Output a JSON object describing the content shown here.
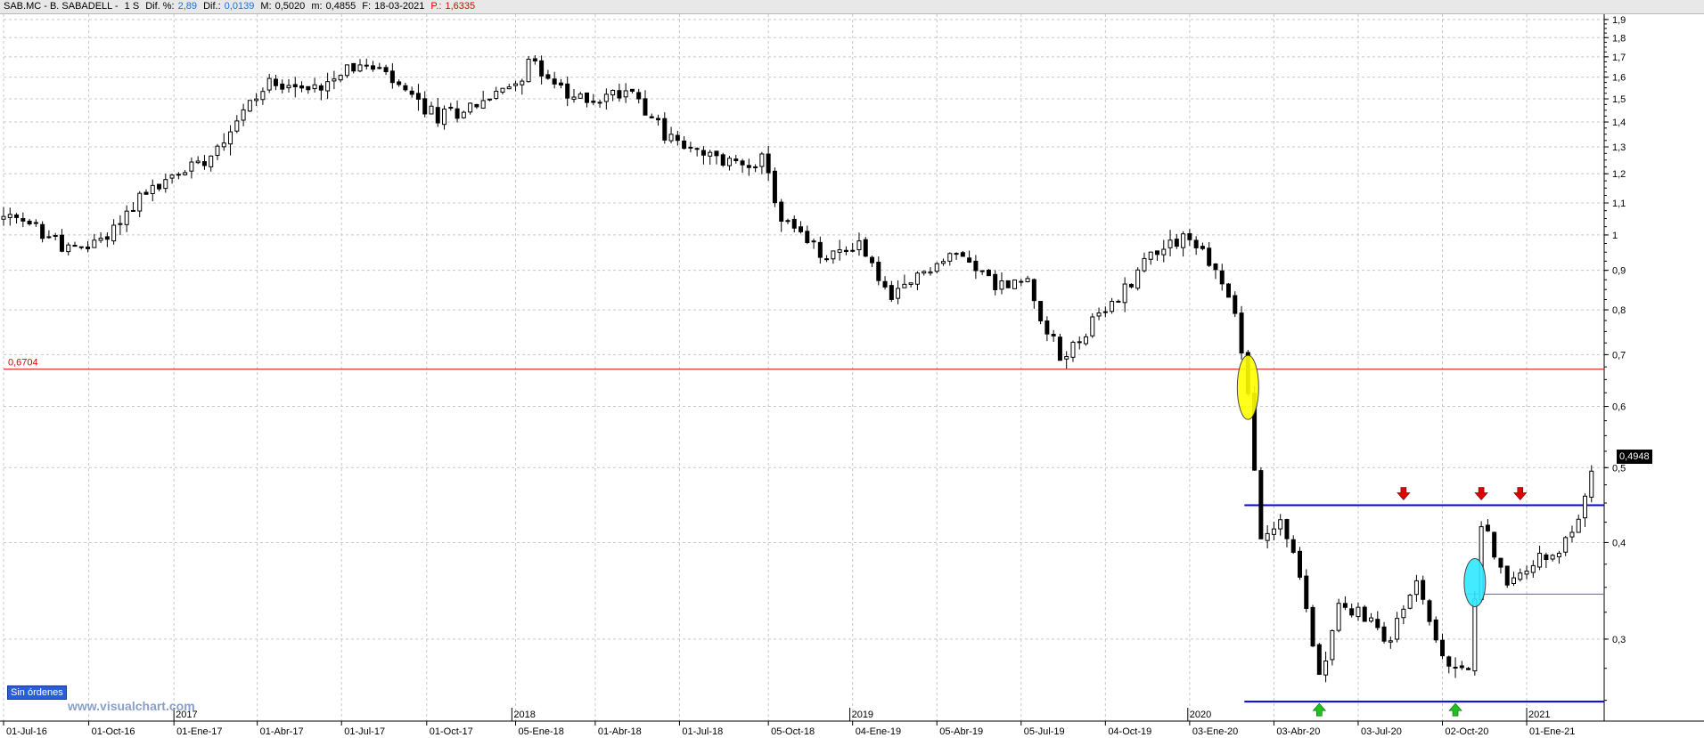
{
  "header": {
    "symbol": "SAB.MC - B. SABADELL -",
    "period": "1 S",
    "dif_pct_label": "Dif. %:",
    "dif_pct_value": "2,89",
    "dif_label": "Dif.:",
    "dif_value": "0,0139",
    "max_label": "M:",
    "max_value": "0,5020",
    "min_label": "m:",
    "min_value": "0,4855",
    "date_label": "F:",
    "date_value": "18-03-2021",
    "p_label": "P.:",
    "p_value": "1,6335"
  },
  "orders_label": "Sin órdenes",
  "watermark": "www.visualchart.com",
  "last_price_label": "0,4948",
  "chart_data": {
    "type": "candlestick",
    "y_scale": "log",
    "ylim": [
      0.235,
      1.93
    ],
    "yticks": [
      0.3,
      0.4,
      0.5,
      0.6,
      0.7,
      0.8,
      0.9,
      1,
      1.1,
      1.2,
      1.3,
      1.4,
      1.5,
      1.6,
      1.7,
      1.8,
      1.9
    ],
    "ytick_labels": [
      "0,3",
      "0,4",
      "0,5",
      "0,6",
      "0,7",
      "0,8",
      "0,9",
      "1",
      "1,1",
      "1,2",
      "1,3",
      "1,4",
      "1,5",
      "1,6",
      "1,7",
      "1,8",
      "1,9"
    ],
    "x_range": [
      "2016-07-01",
      "2021-03-18"
    ],
    "date_ticks": [
      {
        "date": "2016-07-01",
        "label": "01-Jul-16"
      },
      {
        "date": "2016-10-01",
        "label": "01-Oct-16"
      },
      {
        "date": "2017-01-01",
        "label": "01-Ene-17"
      },
      {
        "date": "2017-04-01",
        "label": "01-Abr-17"
      },
      {
        "date": "2017-07-01",
        "label": "01-Jul-17"
      },
      {
        "date": "2017-10-01",
        "label": "01-Oct-17"
      },
      {
        "date": "2018-01-05",
        "label": "05-Ene-18"
      },
      {
        "date": "2018-04-01",
        "label": "01-Abr-18"
      },
      {
        "date": "2018-07-01",
        "label": "01-Jul-18"
      },
      {
        "date": "2018-10-05",
        "label": "05-Oct-18"
      },
      {
        "date": "2019-01-04",
        "label": "04-Ene-19"
      },
      {
        "date": "2019-04-05",
        "label": "05-Abr-19"
      },
      {
        "date": "2019-07-05",
        "label": "05-Jul-19"
      },
      {
        "date": "2019-10-04",
        "label": "04-Oct-19"
      },
      {
        "date": "2020-01-03",
        "label": "03-Ene-20"
      },
      {
        "date": "2020-04-03",
        "label": "03-Abr-20"
      },
      {
        "date": "2020-07-03",
        "label": "03-Jul-20"
      },
      {
        "date": "2020-10-02",
        "label": "02-Oct-20"
      },
      {
        "date": "2021-01-01",
        "label": "01-Ene-21"
      }
    ],
    "year_markers": [
      {
        "date": "2017-01-01",
        "label": "2017"
      },
      {
        "date": "2018-01-01",
        "label": "2018"
      },
      {
        "date": "2019-01-01",
        "label": "2019"
      },
      {
        "date": "2020-01-01",
        "label": "2020"
      },
      {
        "date": "2021-01-01",
        "label": "2021"
      }
    ],
    "anchors": [
      {
        "date": "2016-07-01",
        "value": 1.05
      },
      {
        "date": "2016-08-05",
        "value": 1.02
      },
      {
        "date": "2016-09-16",
        "value": 0.95
      },
      {
        "date": "2016-10-21",
        "value": 1.0
      },
      {
        "date": "2016-11-25",
        "value": 1.12
      },
      {
        "date": "2016-12-23",
        "value": 1.17
      },
      {
        "date": "2017-02-10",
        "value": 1.28
      },
      {
        "date": "2017-03-17",
        "value": 1.45
      },
      {
        "date": "2017-04-21",
        "value": 1.6
      },
      {
        "date": "2017-05-26",
        "value": 1.53
      },
      {
        "date": "2017-07-07",
        "value": 1.66
      },
      {
        "date": "2017-08-11",
        "value": 1.63
      },
      {
        "date": "2017-09-15",
        "value": 1.5
      },
      {
        "date": "2017-10-13",
        "value": 1.42
      },
      {
        "date": "2017-11-17",
        "value": 1.47
      },
      {
        "date": "2017-12-22",
        "value": 1.53
      },
      {
        "date": "2018-01-26",
        "value": 1.68
      },
      {
        "date": "2018-03-02",
        "value": 1.5
      },
      {
        "date": "2018-04-06",
        "value": 1.5
      },
      {
        "date": "2018-05-11",
        "value": 1.55
      },
      {
        "date": "2018-06-15",
        "value": 1.35
      },
      {
        "date": "2018-07-20",
        "value": 1.27
      },
      {
        "date": "2018-08-24",
        "value": 1.24
      },
      {
        "date": "2018-09-28",
        "value": 1.25
      },
      {
        "date": "2018-10-19",
        "value": 1.05
      },
      {
        "date": "2018-12-07",
        "value": 0.93
      },
      {
        "date": "2019-01-11",
        "value": 0.98
      },
      {
        "date": "2019-02-15",
        "value": 0.82
      },
      {
        "date": "2019-03-22",
        "value": 0.9
      },
      {
        "date": "2019-05-03",
        "value": 0.95
      },
      {
        "date": "2019-06-07",
        "value": 0.86
      },
      {
        "date": "2019-07-12",
        "value": 0.87
      },
      {
        "date": "2019-08-16",
        "value": 0.69
      },
      {
        "date": "2019-09-13",
        "value": 0.75
      },
      {
        "date": "2019-10-18",
        "value": 0.83
      },
      {
        "date": "2019-11-22",
        "value": 0.95
      },
      {
        "date": "2019-12-27",
        "value": 1.0
      },
      {
        "date": "2020-01-24",
        "value": 0.93
      },
      {
        "date": "2020-02-21",
        "value": 0.8
      },
      {
        "date": "2020-03-06",
        "value": 0.62
      },
      {
        "date": "2020-03-20",
        "value": 0.4
      },
      {
        "date": "2020-04-10",
        "value": 0.43
      },
      {
        "date": "2020-05-01",
        "value": 0.36
      },
      {
        "date": "2020-05-22",
        "value": 0.27
      },
      {
        "date": "2020-06-12",
        "value": 0.33
      },
      {
        "date": "2020-07-10",
        "value": 0.32
      },
      {
        "date": "2020-08-07",
        "value": 0.3
      },
      {
        "date": "2020-09-04",
        "value": 0.36
      },
      {
        "date": "2020-10-02",
        "value": 0.28
      },
      {
        "date": "2020-10-30",
        "value": 0.27
      },
      {
        "date": "2020-11-13",
        "value": 0.43
      },
      {
        "date": "2020-12-11",
        "value": 0.35
      },
      {
        "date": "2021-01-08",
        "value": 0.38
      },
      {
        "date": "2021-02-05",
        "value": 0.38
      },
      {
        "date": "2021-03-18",
        "value": 0.4948
      }
    ],
    "hlines": [
      {
        "value": 0.6704,
        "color": "#e00000",
        "label": "0,6704",
        "from": "2016-07-01",
        "to": "2021-03-18"
      },
      {
        "value": 0.447,
        "color": "#0000e0",
        "label": "",
        "from": "2020-03-06",
        "to": "2021-03-18"
      },
      {
        "value": 0.249,
        "color": "#0000e0",
        "label": "",
        "from": "2020-03-06",
        "to": "2021-03-18"
      },
      {
        "value": 0.343,
        "color": "#d020d0",
        "label": "",
        "from": "2020-10-30",
        "to": "2021-03-18"
      }
    ],
    "markers": [
      {
        "type": "ellipse",
        "date": "2020-03-06",
        "value": 0.635,
        "color": "#ffff00"
      },
      {
        "type": "ellipse",
        "date": "2020-11-06",
        "value": 0.355,
        "color": "#30e8ff"
      },
      {
        "type": "arrow-down",
        "date": "2020-08-21",
        "value": 0.447,
        "color": "#e00000"
      },
      {
        "type": "arrow-down",
        "date": "2020-11-13",
        "value": 0.447,
        "color": "#e00000"
      },
      {
        "type": "arrow-down",
        "date": "2020-12-25",
        "value": 0.447,
        "color": "#e00000"
      },
      {
        "type": "arrow-up",
        "date": "2020-05-22",
        "value": 0.249,
        "color": "#20c020"
      },
      {
        "type": "arrow-up",
        "date": "2020-10-16",
        "value": 0.249,
        "color": "#20c020"
      }
    ],
    "colors": {
      "grid": "#c8c8c8",
      "candle_up": "#ffffff",
      "candle_down": "#000000",
      "wick": "#000000"
    }
  }
}
